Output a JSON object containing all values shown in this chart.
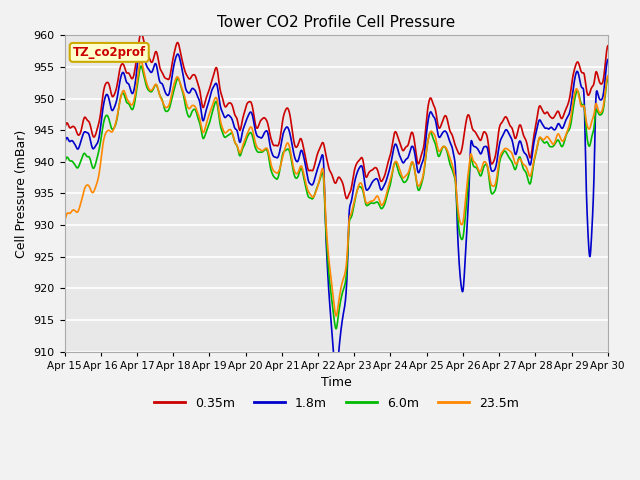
{
  "title": "Tower CO2 Profile Cell Pressure",
  "xlabel": "Time",
  "ylabel": "Cell Pressure (mBar)",
  "ylim": [
    910,
    960
  ],
  "yticks": [
    910,
    915,
    920,
    925,
    930,
    935,
    940,
    945,
    950,
    955,
    960
  ],
  "x_tick_labels": [
    "Apr 15",
    "Apr 16",
    "Apr 17",
    "Apr 18",
    "Apr 19",
    "Apr 20",
    "Apr 21",
    "Apr 22",
    "Apr 23",
    "Apr 24",
    "Apr 25",
    "Apr 26",
    "Apr 27",
    "Apr 28",
    "Apr 29",
    "Apr 30"
  ],
  "legend_entries": [
    "0.35m",
    "1.8m",
    "6.0m",
    "23.5m"
  ],
  "line_colors": [
    "#cc0000",
    "#0000cc",
    "#00bb00",
    "#ff8800"
  ],
  "annotation_text": "TZ_co2prof",
  "annotation_color": "#cc0000",
  "annotation_bg": "#ffffcc",
  "annotation_border": "#ccaa00",
  "plot_bg_color": "#e8e8e8",
  "fig_bg_color": "#f2f2f2",
  "grid_color": "#ffffff",
  "n_points": 1500
}
